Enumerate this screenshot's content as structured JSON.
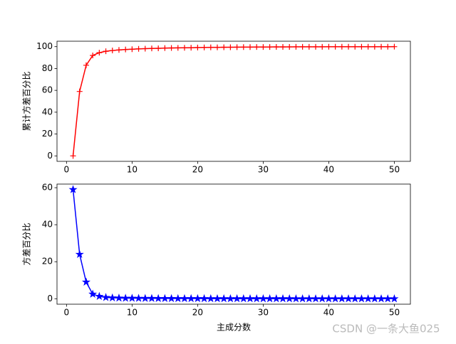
{
  "chart_data": [
    {
      "type": "line",
      "ylabel": "累计方差百分比",
      "marker": "+",
      "x": [
        1,
        2,
        3,
        4,
        5,
        6,
        7,
        8,
        9,
        10,
        11,
        12,
        13,
        14,
        15,
        16,
        17,
        18,
        19,
        20,
        21,
        22,
        23,
        24,
        25,
        26,
        27,
        28,
        29,
        30,
        31,
        32,
        33,
        34,
        35,
        36,
        37,
        38,
        39,
        40,
        41,
        42,
        43,
        44,
        45,
        46,
        47,
        48,
        49,
        50
      ],
      "series": [
        {
          "color": "#ff0000",
          "values": [
            0,
            59,
            83,
            92,
            94.5,
            95.8,
            96.5,
            97,
            97.4,
            97.7,
            98,
            98.2,
            98.4,
            98.5,
            98.7,
            98.8,
            98.9,
            99,
            99.1,
            99.2,
            99.3,
            99.35,
            99.4,
            99.45,
            99.5,
            99.55,
            99.6,
            99.65,
            99.7,
            99.72,
            99.75,
            99.78,
            99.8,
            99.82,
            99.84,
            99.86,
            99.88,
            99.9,
            99.91,
            99.92,
            99.93,
            99.94,
            99.95,
            99.96,
            99.97,
            99.98,
            99.98,
            99.99,
            99.99,
            100
          ]
        }
      ],
      "xlim": [
        -1.45,
        52.45
      ],
      "xticks": [
        0,
        10,
        20,
        30,
        40,
        50
      ],
      "ylim": [
        -5,
        105
      ],
      "yticks": [
        0,
        20,
        40,
        60,
        80,
        100
      ]
    },
    {
      "type": "line",
      "ylabel": "方差百分比",
      "xlabel": "主成分数",
      "marker": "*",
      "x": [
        1,
        2,
        3,
        4,
        5,
        6,
        7,
        8,
        9,
        10,
        11,
        12,
        13,
        14,
        15,
        16,
        17,
        18,
        19,
        20,
        21,
        22,
        23,
        24,
        25,
        26,
        27,
        28,
        29,
        30,
        31,
        32,
        33,
        34,
        35,
        36,
        37,
        38,
        39,
        40,
        41,
        42,
        43,
        44,
        45,
        46,
        47,
        48,
        49,
        50
      ],
      "series": [
        {
          "color": "#0000ff",
          "values": [
            59,
            24,
            9,
            2.5,
            1.3,
            0.7,
            0.5,
            0.4,
            0.3,
            0.3,
            0.25,
            0.2,
            0.2,
            0.15,
            0.15,
            0.12,
            0.1,
            0.1,
            0.1,
            0.1,
            0.08,
            0.07,
            0.06,
            0.06,
            0.05,
            0.05,
            0.05,
            0.05,
            0.04,
            0.04,
            0.03,
            0.03,
            0.03,
            0.03,
            0.02,
            0.02,
            0.02,
            0.02,
            0.02,
            0.02,
            0.01,
            0.01,
            0.01,
            0.01,
            0.01,
            0.01,
            0.01,
            0.01,
            0.01,
            0.01
          ]
        }
      ],
      "xlim": [
        -1.45,
        52.45
      ],
      "xticks": [
        0,
        10,
        20,
        30,
        40,
        50
      ],
      "ylim": [
        -2.95,
        61.95
      ],
      "yticks": [
        0,
        20,
        40,
        60
      ]
    }
  ],
  "watermark": "CSDN @一条大鱼025"
}
